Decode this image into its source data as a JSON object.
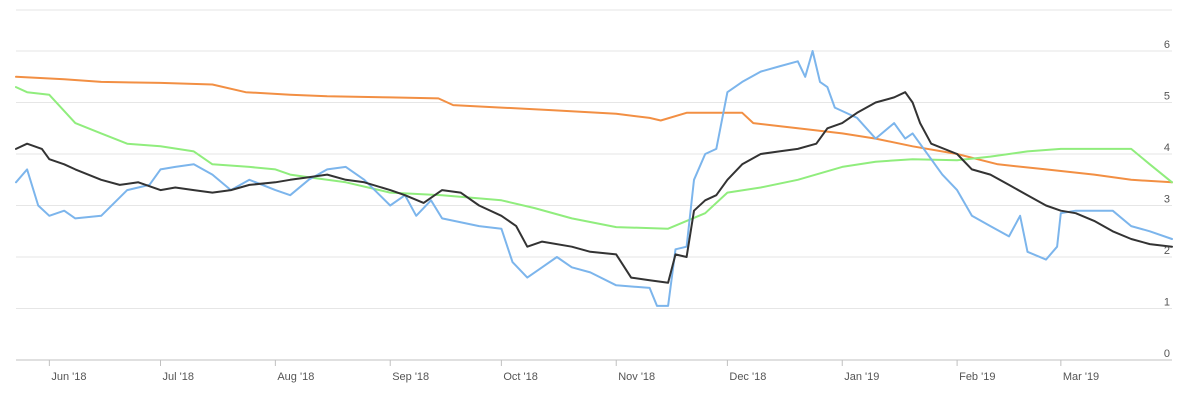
{
  "chart_data": {
    "type": "line",
    "title": "",
    "xlabel": "",
    "ylabel": "",
    "x_ticks": [
      "Jun '18",
      "Jul '18",
      "Aug '18",
      "Sep '18",
      "Oct '18",
      "Nov '18",
      "Dec '18",
      "Jan '19",
      "Feb '19",
      "Mar '19"
    ],
    "y_ticks": [
      0,
      1,
      2,
      3,
      4,
      5,
      6
    ],
    "ylim": [
      0,
      6
    ],
    "xlim": [
      "2018-05-23",
      "2019-03-31"
    ],
    "y_axis_position": "right",
    "grid": true,
    "legend": "none",
    "series": [
      {
        "color": "#f28f43",
        "points": [
          [
            "2018-05-23",
            5.5
          ],
          [
            "2018-06-05",
            5.45
          ],
          [
            "2018-06-15",
            5.4
          ],
          [
            "2018-07-01",
            5.38
          ],
          [
            "2018-07-15",
            5.35
          ],
          [
            "2018-07-24",
            5.2
          ],
          [
            "2018-08-05",
            5.15
          ],
          [
            "2018-08-15",
            5.12
          ],
          [
            "2018-09-01",
            5.1
          ],
          [
            "2018-09-14",
            5.08
          ],
          [
            "2018-09-18",
            4.95
          ],
          [
            "2018-10-01",
            4.9
          ],
          [
            "2018-10-15",
            4.85
          ],
          [
            "2018-11-01",
            4.78
          ],
          [
            "2018-11-10",
            4.7
          ],
          [
            "2018-11-13",
            4.65
          ],
          [
            "2018-11-20",
            4.8
          ],
          [
            "2018-12-05",
            4.8
          ],
          [
            "2018-12-08",
            4.6
          ],
          [
            "2018-12-20",
            4.5
          ],
          [
            "2019-01-01",
            4.4
          ],
          [
            "2019-01-10",
            4.3
          ],
          [
            "2019-01-20",
            4.15
          ],
          [
            "2019-02-01",
            4.0
          ],
          [
            "2019-02-12",
            3.8
          ],
          [
            "2019-02-25",
            3.7
          ],
          [
            "2019-03-10",
            3.6
          ],
          [
            "2019-03-20",
            3.5
          ],
          [
            "2019-03-31",
            3.45
          ]
        ]
      },
      {
        "color": "#90ed7d",
        "points": [
          [
            "2018-05-23",
            5.3
          ],
          [
            "2018-05-26",
            5.2
          ],
          [
            "2018-06-01",
            5.15
          ],
          [
            "2018-06-08",
            4.6
          ],
          [
            "2018-06-15",
            4.4
          ],
          [
            "2018-06-22",
            4.2
          ],
          [
            "2018-07-01",
            4.15
          ],
          [
            "2018-07-10",
            4.05
          ],
          [
            "2018-07-15",
            3.8
          ],
          [
            "2018-07-25",
            3.75
          ],
          [
            "2018-08-01",
            3.7
          ],
          [
            "2018-08-05",
            3.6
          ],
          [
            "2018-08-10",
            3.55
          ],
          [
            "2018-08-20",
            3.45
          ],
          [
            "2018-09-01",
            3.25
          ],
          [
            "2018-09-15",
            3.2
          ],
          [
            "2018-10-01",
            3.1
          ],
          [
            "2018-10-10",
            2.95
          ],
          [
            "2018-10-20",
            2.75
          ],
          [
            "2018-11-01",
            2.58
          ],
          [
            "2018-11-15",
            2.55
          ],
          [
            "2018-11-25",
            2.85
          ],
          [
            "2018-12-01",
            3.25
          ],
          [
            "2018-12-10",
            3.35
          ],
          [
            "2018-12-20",
            3.5
          ],
          [
            "2019-01-01",
            3.75
          ],
          [
            "2019-01-10",
            3.85
          ],
          [
            "2019-01-20",
            3.9
          ],
          [
            "2019-02-01",
            3.88
          ],
          [
            "2019-02-10",
            3.95
          ],
          [
            "2019-02-20",
            4.05
          ],
          [
            "2019-03-01",
            4.1
          ],
          [
            "2019-03-20",
            4.1
          ],
          [
            "2019-03-25",
            3.8
          ],
          [
            "2019-03-31",
            3.45
          ]
        ]
      },
      {
        "color": "#7cb5ec",
        "points": [
          [
            "2018-05-23",
            3.45
          ],
          [
            "2018-05-26",
            3.7
          ],
          [
            "2018-05-29",
            3.0
          ],
          [
            "2018-06-01",
            2.8
          ],
          [
            "2018-06-05",
            2.9
          ],
          [
            "2018-06-08",
            2.75
          ],
          [
            "2018-06-15",
            2.8
          ],
          [
            "2018-06-22",
            3.3
          ],
          [
            "2018-06-28",
            3.4
          ],
          [
            "2018-07-01",
            3.7
          ],
          [
            "2018-07-05",
            3.75
          ],
          [
            "2018-07-10",
            3.8
          ],
          [
            "2018-07-15",
            3.6
          ],
          [
            "2018-07-20",
            3.3
          ],
          [
            "2018-07-25",
            3.5
          ],
          [
            "2018-08-01",
            3.3
          ],
          [
            "2018-08-05",
            3.2
          ],
          [
            "2018-08-10",
            3.5
          ],
          [
            "2018-08-15",
            3.7
          ],
          [
            "2018-08-20",
            3.75
          ],
          [
            "2018-08-25",
            3.5
          ],
          [
            "2018-09-01",
            3.0
          ],
          [
            "2018-09-05",
            3.2
          ],
          [
            "2018-09-08",
            2.8
          ],
          [
            "2018-09-12",
            3.1
          ],
          [
            "2018-09-15",
            2.75
          ],
          [
            "2018-09-25",
            2.6
          ],
          [
            "2018-10-01",
            2.55
          ],
          [
            "2018-10-04",
            1.9
          ],
          [
            "2018-10-08",
            1.6
          ],
          [
            "2018-10-12",
            1.8
          ],
          [
            "2018-10-16",
            2.0
          ],
          [
            "2018-10-20",
            1.8
          ],
          [
            "2018-10-25",
            1.7
          ],
          [
            "2018-11-01",
            1.45
          ],
          [
            "2018-11-10",
            1.4
          ],
          [
            "2018-11-12",
            1.05
          ],
          [
            "2018-11-15",
            1.05
          ],
          [
            "2018-11-17",
            2.15
          ],
          [
            "2018-11-20",
            2.2
          ],
          [
            "2018-11-22",
            3.5
          ],
          [
            "2018-11-25",
            4.0
          ],
          [
            "2018-11-28",
            4.1
          ],
          [
            "2018-12-01",
            5.2
          ],
          [
            "2018-12-05",
            5.4
          ],
          [
            "2018-12-10",
            5.6
          ],
          [
            "2018-12-15",
            5.7
          ],
          [
            "2018-12-20",
            5.8
          ],
          [
            "2018-12-22",
            5.5
          ],
          [
            "2018-12-24",
            6.0
          ],
          [
            "2018-12-26",
            5.4
          ],
          [
            "2018-12-28",
            5.3
          ],
          [
            "2018-12-30",
            4.9
          ],
          [
            "2019-01-05",
            4.7
          ],
          [
            "2019-01-10",
            4.3
          ],
          [
            "2019-01-15",
            4.6
          ],
          [
            "2019-01-18",
            4.3
          ],
          [
            "2019-01-20",
            4.4
          ],
          [
            "2019-01-25",
            3.9
          ],
          [
            "2019-01-28",
            3.6
          ],
          [
            "2019-02-01",
            3.3
          ],
          [
            "2019-02-05",
            2.8
          ],
          [
            "2019-02-10",
            2.6
          ],
          [
            "2019-02-15",
            2.4
          ],
          [
            "2019-02-18",
            2.8
          ],
          [
            "2019-02-20",
            2.1
          ],
          [
            "2019-02-25",
            1.95
          ],
          [
            "2019-02-28",
            2.2
          ],
          [
            "2019-03-01",
            2.85
          ],
          [
            "2019-03-05",
            2.9
          ],
          [
            "2019-03-15",
            2.9
          ],
          [
            "2019-03-20",
            2.6
          ],
          [
            "2019-03-25",
            2.5
          ],
          [
            "2019-03-31",
            2.35
          ]
        ]
      },
      {
        "color": "#333333",
        "points": [
          [
            "2018-05-23",
            4.1
          ],
          [
            "2018-05-26",
            4.2
          ],
          [
            "2018-05-30",
            4.1
          ],
          [
            "2018-06-01",
            3.9
          ],
          [
            "2018-06-05",
            3.8
          ],
          [
            "2018-06-08",
            3.7
          ],
          [
            "2018-06-15",
            3.5
          ],
          [
            "2018-06-20",
            3.4
          ],
          [
            "2018-06-25",
            3.45
          ],
          [
            "2018-07-01",
            3.3
          ],
          [
            "2018-07-05",
            3.35
          ],
          [
            "2018-07-10",
            3.3
          ],
          [
            "2018-07-15",
            3.25
          ],
          [
            "2018-07-20",
            3.3
          ],
          [
            "2018-07-25",
            3.4
          ],
          [
            "2018-08-01",
            3.45
          ],
          [
            "2018-08-05",
            3.5
          ],
          [
            "2018-08-10",
            3.55
          ],
          [
            "2018-08-15",
            3.6
          ],
          [
            "2018-08-20",
            3.5
          ],
          [
            "2018-08-25",
            3.45
          ],
          [
            "2018-09-01",
            3.3
          ],
          [
            "2018-09-05",
            3.2
          ],
          [
            "2018-09-10",
            3.05
          ],
          [
            "2018-09-15",
            3.3
          ],
          [
            "2018-09-20",
            3.25
          ],
          [
            "2018-09-25",
            3.0
          ],
          [
            "2018-10-01",
            2.8
          ],
          [
            "2018-10-05",
            2.6
          ],
          [
            "2018-10-08",
            2.2
          ],
          [
            "2018-10-12",
            2.3
          ],
          [
            "2018-10-20",
            2.2
          ],
          [
            "2018-10-25",
            2.1
          ],
          [
            "2018-11-01",
            2.05
          ],
          [
            "2018-11-05",
            1.6
          ],
          [
            "2018-11-10",
            1.55
          ],
          [
            "2018-11-15",
            1.5
          ],
          [
            "2018-11-17",
            2.05
          ],
          [
            "2018-11-20",
            2.0
          ],
          [
            "2018-11-22",
            2.9
          ],
          [
            "2018-11-25",
            3.1
          ],
          [
            "2018-11-28",
            3.2
          ],
          [
            "2018-12-01",
            3.5
          ],
          [
            "2018-12-05",
            3.8
          ],
          [
            "2018-12-10",
            4.0
          ],
          [
            "2018-12-15",
            4.05
          ],
          [
            "2018-12-20",
            4.1
          ],
          [
            "2018-12-25",
            4.2
          ],
          [
            "2018-12-28",
            4.5
          ],
          [
            "2019-01-01",
            4.6
          ],
          [
            "2019-01-05",
            4.8
          ],
          [
            "2019-01-10",
            5.0
          ],
          [
            "2019-01-15",
            5.1
          ],
          [
            "2019-01-18",
            5.2
          ],
          [
            "2019-01-20",
            5.0
          ],
          [
            "2019-01-22",
            4.6
          ],
          [
            "2019-01-25",
            4.2
          ],
          [
            "2019-02-01",
            4.0
          ],
          [
            "2019-02-05",
            3.7
          ],
          [
            "2019-02-10",
            3.6
          ],
          [
            "2019-02-15",
            3.4
          ],
          [
            "2019-02-20",
            3.2
          ],
          [
            "2019-02-25",
            3.0
          ],
          [
            "2019-03-01",
            2.9
          ],
          [
            "2019-03-05",
            2.85
          ],
          [
            "2019-03-10",
            2.7
          ],
          [
            "2019-03-15",
            2.5
          ],
          [
            "2019-03-20",
            2.35
          ],
          [
            "2019-03-25",
            2.25
          ],
          [
            "2019-03-31",
            2.2
          ]
        ]
      }
    ]
  }
}
